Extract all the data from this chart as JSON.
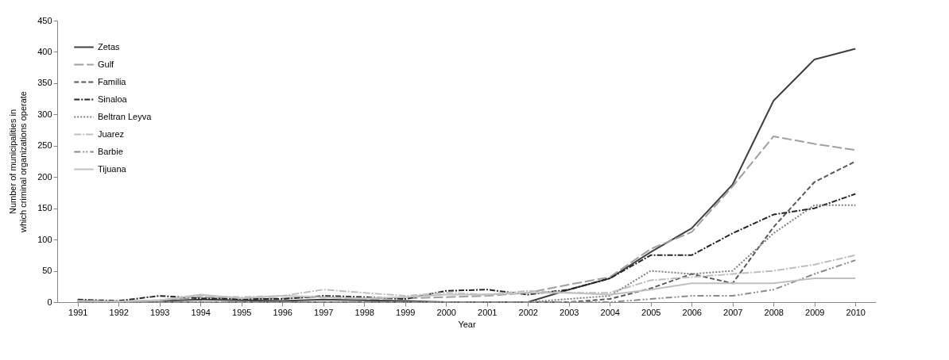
{
  "chart_data": {
    "type": "line",
    "xlabel": "Year",
    "ylabel": "Number of municipalities in which criminal organizations operate",
    "categories": [
      "1991",
      "1992",
      "1993",
      "1994",
      "1995",
      "1996",
      "1997",
      "1998",
      "1999",
      "2000",
      "2001",
      "2002",
      "2003",
      "2004",
      "2005",
      "2006",
      "2007",
      "2008",
      "2009",
      "2010"
    ],
    "ylim": [
      0,
      450
    ],
    "yticks": [
      0,
      50,
      100,
      150,
      200,
      250,
      300,
      350,
      400,
      450
    ],
    "grid": false,
    "legend": "top left",
    "marker": "none",
    "series": [
      {
        "name": "Zetas",
        "color": "#404040",
        "line_style": "solid",
        "values": [
          3,
          0,
          2,
          4,
          3,
          2,
          4,
          3,
          2,
          0,
          0,
          0,
          20,
          38,
          80,
          118,
          188,
          322,
          388,
          405
        ]
      },
      {
        "name": "Gulf",
        "color": "#a0a0a0",
        "line_style": "dashed",
        "values": [
          2,
          1,
          3,
          8,
          5,
          6,
          8,
          5,
          6,
          8,
          10,
          15,
          28,
          40,
          85,
          112,
          185,
          265,
          253,
          243
        ]
      },
      {
        "name": "Familia",
        "color": "#595959",
        "line_style": "dashed",
        "values": [
          0,
          0,
          0,
          0,
          0,
          0,
          0,
          0,
          0,
          0,
          0,
          0,
          0,
          5,
          22,
          45,
          30,
          120,
          192,
          225
        ]
      },
      {
        "name": "Sinaloa",
        "color": "#262626",
        "line_style": "dashed",
        "values": [
          4,
          2,
          10,
          6,
          5,
          5,
          10,
          8,
          5,
          18,
          20,
          12,
          20,
          38,
          75,
          75,
          110,
          140,
          150,
          173
        ]
      },
      {
        "name": "Beltran Leyva",
        "color": "#7f7f7f",
        "line_style": "dotted",
        "values": [
          0,
          0,
          0,
          0,
          0,
          0,
          0,
          0,
          0,
          0,
          0,
          0,
          5,
          10,
          50,
          45,
          50,
          110,
          155,
          155
        ]
      },
      {
        "name": "Juarez",
        "color": "#bfbfbf",
        "line_style": "dashed",
        "values": [
          2,
          1,
          3,
          10,
          8,
          10,
          20,
          15,
          10,
          15,
          12,
          18,
          15,
          15,
          35,
          40,
          45,
          50,
          60,
          75
        ]
      },
      {
        "name": "Barbie",
        "color": "#8c8c8c",
        "line_style": "dashed",
        "values": [
          0,
          0,
          0,
          0,
          0,
          0,
          0,
          0,
          0,
          0,
          0,
          0,
          0,
          0,
          5,
          10,
          10,
          20,
          45,
          67
        ]
      },
      {
        "name": "Tijuana",
        "color": "#c0c0c0",
        "line_style": "solid",
        "values": [
          2,
          1,
          3,
          12,
          6,
          10,
          8,
          6,
          8,
          12,
          12,
          15,
          15,
          12,
          20,
          30,
          30,
          30,
          38,
          38
        ]
      }
    ]
  }
}
